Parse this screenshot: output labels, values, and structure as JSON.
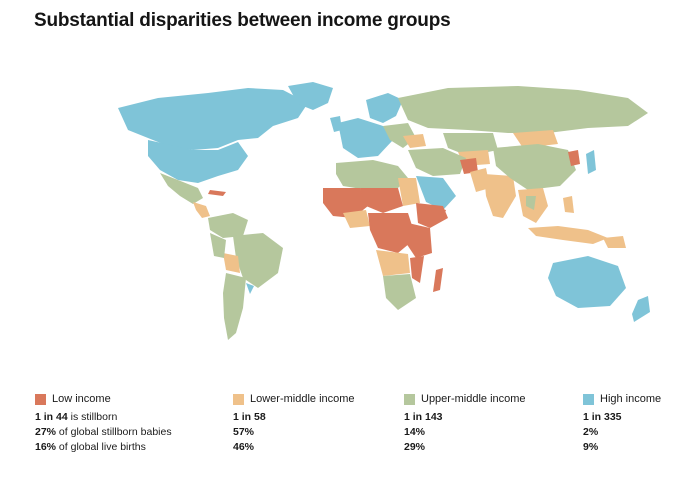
{
  "title": "Substantial disparities between income groups",
  "colors": {
    "low": "#d9785b",
    "lower_middle": "#efc18a",
    "upper_middle": "#b5c79d",
    "high": "#7fc4d8",
    "background": "#ffffff"
  },
  "legend": [
    {
      "key": "low",
      "label": "Low income",
      "line1_bold": "1 in 44",
      "line1_rest": " is stillborn",
      "line2_bold": "27%",
      "line2_rest": " of global stillborn babies",
      "line3_bold": "16%",
      "line3_rest": " of global live births"
    },
    {
      "key": "lower_middle",
      "label": "Lower-middle income",
      "line1_bold": "1 in 58",
      "line1_rest": "",
      "line2_bold": "57%",
      "line2_rest": "",
      "line3_bold": "46%",
      "line3_rest": ""
    },
    {
      "key": "upper_middle",
      "label": "Upper-middle income",
      "line1_bold": "1 in 143",
      "line1_rest": "",
      "line2_bold": "14%",
      "line2_rest": "",
      "line3_bold": "29%",
      "line3_rest": ""
    },
    {
      "key": "high",
      "label": "High income",
      "line1_bold": "1 in 335",
      "line1_rest": "",
      "line2_bold": "2%",
      "line2_rest": "",
      "line3_bold": "9%",
      "line3_rest": ""
    }
  ]
}
